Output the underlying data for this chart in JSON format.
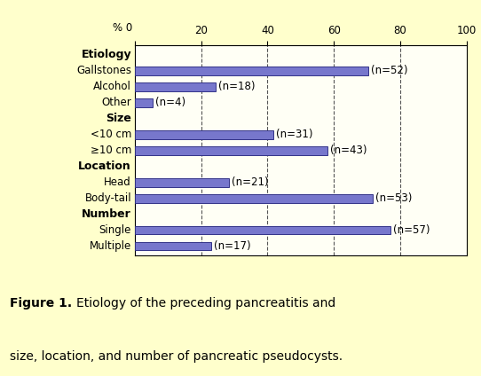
{
  "rows": [
    {
      "type": "header",
      "label": "Etiology"
    },
    {
      "type": "bar",
      "label": "Gallstones",
      "value": 70.3,
      "n_label": "(n=52)"
    },
    {
      "type": "bar",
      "label": "Alcohol",
      "value": 24.3,
      "n_label": "(n=18)"
    },
    {
      "type": "bar",
      "label": "Other",
      "value": 5.4,
      "n_label": "(n=4)"
    },
    {
      "type": "header",
      "label": "Size"
    },
    {
      "type": "bar",
      "label": "<10 cm",
      "value": 41.9,
      "n_label": "(n=31)"
    },
    {
      "type": "bar",
      "label": "≥10 cm",
      "value": 58.1,
      "n_label": "(n=43)"
    },
    {
      "type": "header",
      "label": "Location"
    },
    {
      "type": "bar",
      "label": "Head",
      "value": 28.4,
      "n_label": "(n=21)"
    },
    {
      "type": "bar",
      "label": "Body-tail",
      "value": 71.6,
      "n_label": "(n=53)"
    },
    {
      "type": "header",
      "label": "Number"
    },
    {
      "type": "bar",
      "label": "Single",
      "value": 77.0,
      "n_label": "(n=57)"
    },
    {
      "type": "bar",
      "label": "Multiple",
      "value": 23.0,
      "n_label": "(n=17)"
    }
  ],
  "bar_color": "#7777cc",
  "bar_edge_color": "#333388",
  "background_color": "#ffffcc",
  "plot_bg_color": "#fffff5",
  "xticks": [
    0,
    20,
    40,
    60,
    80,
    100
  ],
  "xlim": [
    0,
    100
  ],
  "grid_color": "#555555",
  "label_fontsize": 8.5,
  "header_fontsize": 9,
  "tick_fontsize": 8.5,
  "bar_height": 0.55,
  "caption_bold": "Figure 1.",
  "caption_rest_line1": " Etiology of the preceding pancreatitis and",
  "caption_line2": "size, location, and number of pancreatic pseudocysts."
}
